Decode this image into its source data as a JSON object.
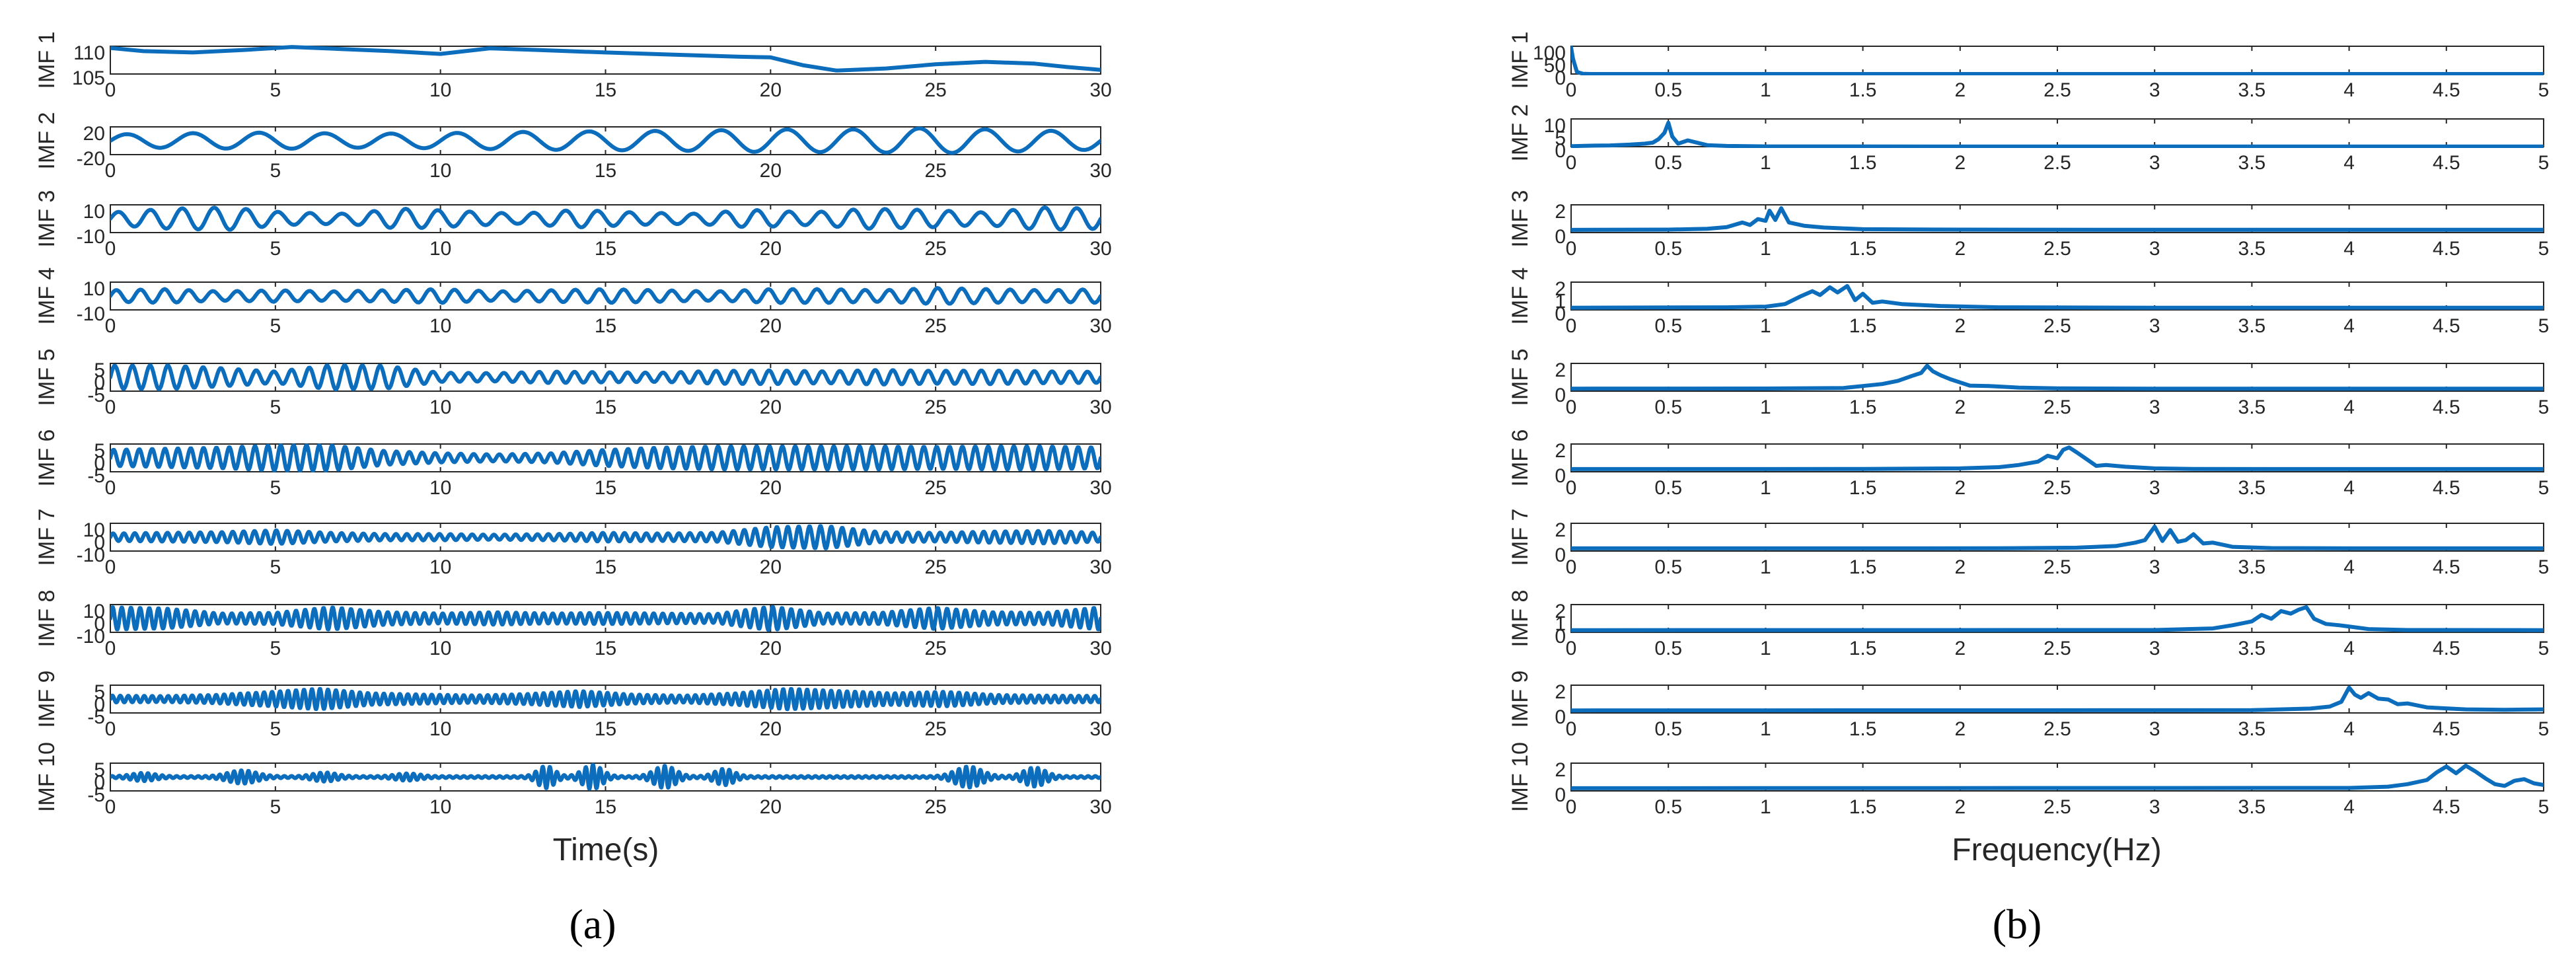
{
  "figure": {
    "line_color": "#0b6dbc",
    "axis_color": "#262626"
  },
  "chart_data": [
    {
      "type": "line",
      "panel": "a",
      "caption": "(a)",
      "xlabel": "Time(s)",
      "xlim": [
        0,
        30
      ],
      "x_ticks": [
        0,
        5,
        10,
        15,
        20,
        25,
        30
      ],
      "grid": false,
      "subplots": [
        {
          "ylabel": "IMF 1",
          "y_ticks": [
            "110",
            "105"
          ],
          "ylim": [
            104,
            112
          ],
          "shape": "trend",
          "x": [
            0,
            1,
            2.5,
            4,
            5.5,
            7,
            8.5,
            10,
            11.5,
            13,
            15,
            17,
            19,
            20,
            21,
            22,
            23.5,
            25,
            26.5,
            28,
            29,
            30
          ],
          "y": [
            111.5,
            110.6,
            110.2,
            110.9,
            111.8,
            111.2,
            110.6,
            109.8,
            111.4,
            110.9,
            110.2,
            109.6,
            109.0,
            108.8,
            106.5,
            105.0,
            105.6,
            106.8,
            107.5,
            107.0,
            106.0,
            105.2
          ]
        },
        {
          "ylabel": "IMF 2",
          "y_ticks": [
            "20",
            "-20"
          ],
          "ylim": [
            -22,
            22
          ],
          "shape": "oscillation",
          "cycles": 15,
          "amplitude": [
            10,
            12,
            13,
            11,
            12,
            14,
            15,
            16,
            18,
            18,
            20,
            17,
            14
          ]
        },
        {
          "ylabel": "IMF 3",
          "y_ticks": [
            "10",
            "-10"
          ],
          "ylim": [
            -11,
            11
          ],
          "shape": "oscillation",
          "cycles": 31,
          "amplitude": [
            5,
            8,
            9,
            5,
            4,
            8,
            6,
            4,
            7,
            5,
            4,
            7,
            5,
            8,
            7,
            5,
            9,
            8
          ]
        },
        {
          "ylabel": "IMF 4",
          "y_ticks": [
            "10",
            "-10"
          ],
          "ylim": [
            -12,
            12
          ],
          "shape": "oscillation",
          "cycles": 41,
          "amplitude": [
            5,
            6,
            4,
            5,
            4,
            5,
            6,
            4,
            5,
            6,
            5,
            4,
            6,
            6,
            5,
            7,
            6,
            5,
            6
          ]
        },
        {
          "ylabel": "IMF 5",
          "y_ticks": [
            "5",
            "0",
            "-5"
          ],
          "ylim": [
            -6,
            6
          ],
          "shape": "oscillation",
          "cycles": 56,
          "amplitude": [
            5,
            5.2,
            4,
            2.5,
            5.3,
            5,
            2,
            1.8,
            2.5,
            2.2,
            2,
            2.8,
            3,
            2.6,
            3.2,
            2.8,
            3,
            2.6,
            2.4
          ]
        },
        {
          "ylabel": "IMF 6",
          "y_ticks": [
            "5",
            "0",
            "-5"
          ],
          "ylim": [
            -6,
            6
          ],
          "shape": "oscillation",
          "cycles": 77,
          "amplitude": [
            3.5,
            4,
            4.5,
            5.5,
            5.5,
            3,
            2,
            1.5,
            2,
            3.5,
            4.5,
            5,
            5,
            5,
            5,
            4.8,
            5,
            5,
            4.5
          ]
        },
        {
          "ylabel": "IMF 7",
          "y_ticks": [
            "10",
            "0",
            "-10"
          ],
          "ylim": [
            -11,
            11
          ],
          "shape": "oscillation",
          "cycles": 91,
          "amplitude": [
            3,
            3.5,
            4,
            5.5,
            3.5,
            2.5,
            2.5,
            2,
            2.5,
            3.5,
            3,
            3.5,
            8,
            9,
            4,
            3.5,
            4.5,
            5,
            3.5
          ]
        },
        {
          "ylabel": "IMF 8",
          "y_ticks": [
            "10",
            "0",
            "-10"
          ],
          "ylim": [
            -11,
            11
          ],
          "shape": "oscillation",
          "cycles": 108,
          "amplitude": [
            9,
            8,
            4,
            4.5,
            9,
            5,
            4,
            5,
            4,
            4.5,
            4,
            3.5,
            9.5,
            4,
            4.5,
            8.5,
            5,
            4.5,
            9
          ]
        },
        {
          "ylabel": "IMF 9",
          "y_ticks": [
            "5",
            "0",
            "-5"
          ],
          "ylim": [
            -6,
            6
          ],
          "shape": "oscillation",
          "cycles": 124,
          "amplitude": [
            1.5,
            1.3,
            1.8,
            3,
            4.5,
            2.5,
            2,
            1.6,
            2.2,
            3.5,
            2,
            1.5,
            2.5,
            4.5,
            3.5,
            2.5,
            3.2,
            1.8,
            1.5,
            1.4
          ]
        },
        {
          "ylabel": "IMF 10",
          "y_ticks": [
            "5",
            "0",
            "-5"
          ],
          "ylim": [
            -6,
            6
          ],
          "shape": "bursts",
          "cycles": 138,
          "base": 0.4,
          "bursts": [
            [
              1,
              1.4,
              0.5
            ],
            [
              4,
              2.5,
              0.6
            ],
            [
              6.5,
              1.6,
              0.5
            ],
            [
              9,
              1.2,
              0.5
            ],
            [
              13.2,
              4.5,
              0.35
            ],
            [
              14.6,
              5,
              0.4
            ],
            [
              16.8,
              4.5,
              0.45
            ],
            [
              18.6,
              3.2,
              0.4
            ],
            [
              26,
              4.2,
              0.55
            ],
            [
              28,
              3.8,
              0.45
            ]
          ]
        }
      ]
    },
    {
      "type": "line",
      "panel": "b",
      "caption": "(b)",
      "xlabel": "Frequency(Hz)",
      "xlim": [
        0,
        5
      ],
      "x_ticks": [
        0,
        0.5,
        1,
        1.5,
        2,
        2.5,
        3,
        3.5,
        4,
        4.5,
        5
      ],
      "grid": false,
      "subplots": [
        {
          "ylabel": "IMF 1",
          "y_ticks": [
            "100",
            "50",
            "0"
          ],
          "ylim": [
            0,
            110
          ],
          "x": [
            0,
            0.01,
            0.03,
            0.06,
            0.1,
            1,
            2,
            3,
            4,
            5
          ],
          "y": [
            105,
            60,
            8,
            1,
            0,
            0,
            0,
            0,
            0,
            0
          ]
        },
        {
          "ylabel": "IMF 2",
          "y_ticks": [
            "10",
            "5",
            "0"
          ],
          "ylim": [
            0,
            11
          ],
          "x": [
            0,
            0.1,
            0.2,
            0.3,
            0.38,
            0.42,
            0.45,
            0.48,
            0.5,
            0.52,
            0.55,
            0.6,
            0.7,
            0.8,
            1,
            2,
            3,
            4,
            5
          ],
          "y": [
            0.2,
            0.4,
            0.5,
            0.8,
            1.2,
            1.6,
            3,
            5.5,
            9.5,
            4,
            1.2,
            2.5,
            0.6,
            0.3,
            0.1,
            0.05,
            0.05,
            0.05,
            0.05
          ]
        },
        {
          "ylabel": "IMF 3",
          "y_ticks": [
            "2",
            "0"
          ],
          "ylim": [
            -0.3,
            3
          ],
          "x": [
            0,
            0.5,
            0.7,
            0.8,
            0.88,
            0.92,
            0.96,
            1.0,
            1.02,
            1.05,
            1.08,
            1.12,
            1.2,
            1.3,
            1.5,
            2,
            3,
            4,
            5
          ],
          "y": [
            0.02,
            0.05,
            0.15,
            0.35,
            0.9,
            0.6,
            1.3,
            1.1,
            2.3,
            1.2,
            2.6,
            0.9,
            0.5,
            0.3,
            0.1,
            0.05,
            0.03,
            0.03,
            0.03
          ]
        },
        {
          "ylabel": "IMF 4",
          "y_ticks": [
            "2",
            "1",
            "0"
          ],
          "ylim": [
            -0.15,
            2
          ],
          "x": [
            0,
            0.8,
            1.0,
            1.1,
            1.18,
            1.24,
            1.28,
            1.33,
            1.37,
            1.42,
            1.46,
            1.5,
            1.55,
            1.6,
            1.7,
            1.9,
            2.2,
            3,
            4,
            5
          ],
          "y": [
            0.02,
            0.05,
            0.1,
            0.3,
            0.9,
            1.3,
            1.0,
            1.6,
            1.2,
            1.7,
            0.6,
            1.1,
            0.4,
            0.5,
            0.3,
            0.15,
            0.05,
            0.02,
            0.02,
            0.02
          ]
        },
        {
          "ylabel": "IMF 5",
          "y_ticks": [
            "2",
            "0"
          ],
          "ylim": [
            -0.3,
            3.2
          ],
          "x": [
            0,
            1,
            1.4,
            1.5,
            1.6,
            1.68,
            1.75,
            1.8,
            1.83,
            1.86,
            1.9,
            1.95,
            2.0,
            2.05,
            2.15,
            2.3,
            2.5,
            3,
            4,
            5
          ],
          "y": [
            0.02,
            0.03,
            0.1,
            0.35,
            0.6,
            1.0,
            1.6,
            2.0,
            2.9,
            2.2,
            1.7,
            1.2,
            0.8,
            0.4,
            0.35,
            0.15,
            0.05,
            0.02,
            0.02,
            0.02
          ]
        },
        {
          "ylabel": "IMF 6",
          "y_ticks": [
            "2",
            "0"
          ],
          "ylim": [
            -0.3,
            3
          ],
          "x": [
            0,
            1.5,
            2.0,
            2.2,
            2.3,
            2.4,
            2.45,
            2.5,
            2.53,
            2.56,
            2.6,
            2.65,
            2.7,
            2.75,
            2.85,
            3.0,
            3.2,
            4,
            5
          ],
          "y": [
            0.02,
            0.03,
            0.1,
            0.25,
            0.5,
            0.9,
            1.6,
            1.3,
            2.3,
            2.6,
            2.0,
            1.2,
            0.4,
            0.5,
            0.3,
            0.1,
            0.03,
            0.02,
            0.02
          ]
        },
        {
          "ylabel": "IMF 7",
          "y_ticks": [
            "2",
            "0"
          ],
          "ylim": [
            -0.3,
            3
          ],
          "x": [
            0,
            2.2,
            2.6,
            2.8,
            2.9,
            2.95,
            3.0,
            3.04,
            3.08,
            3.12,
            3.16,
            3.2,
            3.25,
            3.3,
            3.4,
            3.6,
            4,
            5
          ],
          "y": [
            0.02,
            0.03,
            0.1,
            0.3,
            0.7,
            1.0,
            2.6,
            0.9,
            2.2,
            0.8,
            1.0,
            1.7,
            0.6,
            0.7,
            0.2,
            0.05,
            0.02,
            0.02
          ]
        },
        {
          "ylabel": "IMF 8",
          "y_ticks": [
            "2",
            "1",
            "0"
          ],
          "ylim": [
            -0.15,
            2
          ],
          "x": [
            0,
            3,
            3.3,
            3.4,
            3.5,
            3.55,
            3.6,
            3.65,
            3.7,
            3.74,
            3.78,
            3.82,
            3.88,
            3.95,
            4.1,
            4.3,
            5
          ],
          "y": [
            0.02,
            0.03,
            0.15,
            0.4,
            0.7,
            1.2,
            0.9,
            1.5,
            1.3,
            1.6,
            1.8,
            0.9,
            0.5,
            0.4,
            0.1,
            0.03,
            0.02
          ]
        },
        {
          "ylabel": "IMF 9",
          "y_ticks": [
            "2",
            "0"
          ],
          "ylim": [
            -0.3,
            3.2
          ],
          "x": [
            0,
            3.5,
            3.8,
            3.9,
            3.96,
            4.0,
            4.03,
            4.06,
            4.1,
            4.15,
            4.2,
            4.25,
            4.3,
            4.4,
            4.6,
            4.8,
            5
          ],
          "y": [
            0.02,
            0.05,
            0.25,
            0.5,
            1.1,
            2.9,
            2.0,
            1.6,
            2.2,
            1.5,
            1.4,
            0.8,
            0.9,
            0.4,
            0.15,
            0.1,
            0.15
          ]
        },
        {
          "ylabel": "IMF 10",
          "y_ticks": [
            "2",
            "0"
          ],
          "ylim": [
            -0.3,
            3
          ],
          "x": [
            0,
            4.0,
            4.2,
            4.3,
            4.4,
            4.45,
            4.5,
            4.55,
            4.6,
            4.65,
            4.7,
            4.75,
            4.8,
            4.85,
            4.9,
            4.95,
            5
          ],
          "y": [
            0.02,
            0.05,
            0.2,
            0.5,
            1.0,
            1.9,
            2.6,
            1.8,
            2.7,
            2.0,
            1.2,
            0.5,
            0.3,
            0.9,
            1.1,
            0.6,
            0.4
          ]
        }
      ]
    }
  ]
}
